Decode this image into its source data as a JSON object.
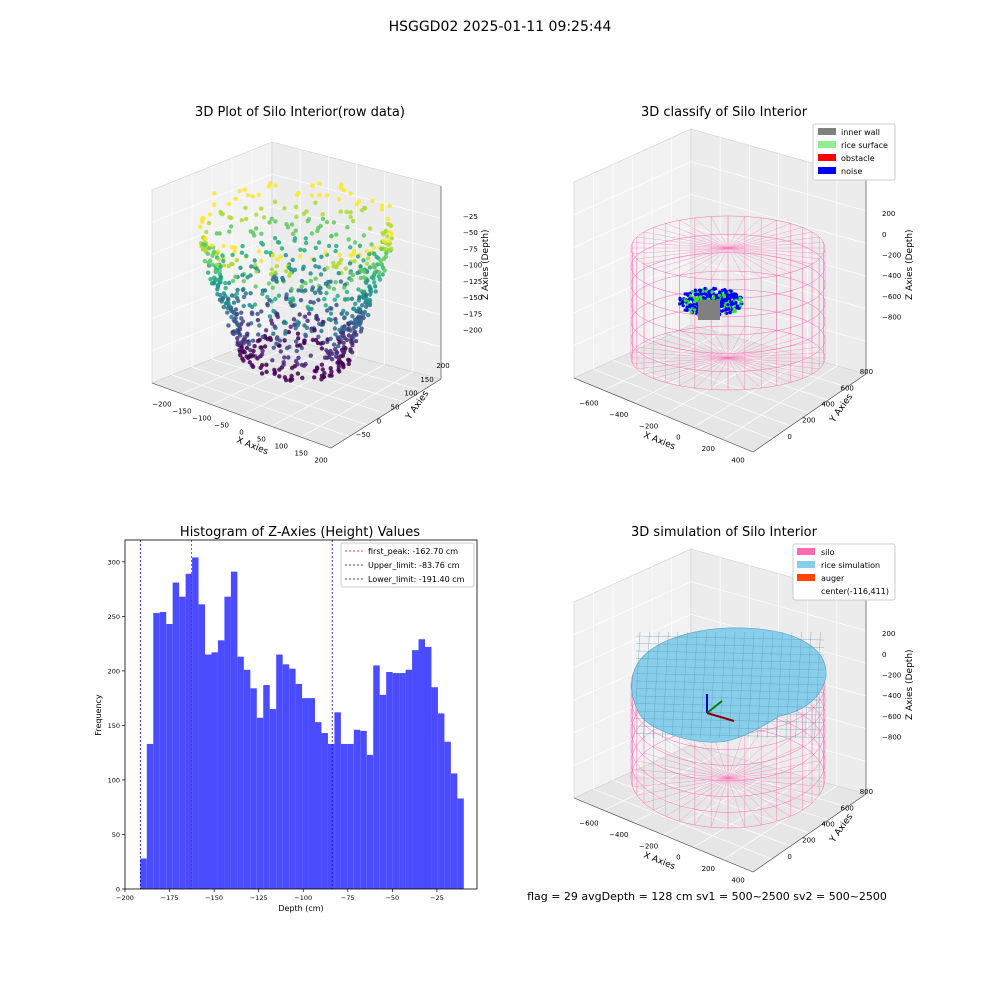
{
  "figure_title": "HSGGD02 2025-01-11 09:25:44",
  "footer_text": "flag = 29  avgDepth = 128 cm  sv1 = 500~2500  sv2 = 500~2500",
  "colors": {
    "hist_bar": "#4b4bff",
    "peak_line": "#ff0000",
    "limit_line": "#0000cc",
    "inner_wall": "#808080",
    "rice_surface": "#90ee90",
    "obstacle": "#ff0000",
    "noise": "#0000ff",
    "silo": "#ff69b4",
    "rice_simulation": "#87ceeb",
    "auger": "#ff4500"
  },
  "chart_data": [
    {
      "type": "scatter",
      "title": "3D Plot of Silo Interior(row data)",
      "xlabel": "X Axies",
      "ylabel": "Y Axies",
      "zlabel": "Z Axies (Depth)",
      "xticks": [
        "−200",
        "−150",
        "−100",
        "−50",
        "0",
        "50",
        "100",
        "150",
        "200"
      ],
      "yticks": [
        "−50",
        "0",
        "50",
        "100",
        "150",
        "200"
      ],
      "zticks": [
        "−25",
        "−50",
        "−75",
        "−100",
        "−125",
        "−150",
        "−175",
        "−200"
      ],
      "colormap": "viridis"
    },
    {
      "type": "scatter",
      "title": "3D classify of Silo Interior",
      "xlabel": "X Axies",
      "ylabel": "Y Axies",
      "zlabel": "Z Axies (Depth)",
      "xticks": [
        "−600",
        "−400",
        "−200",
        "0",
        "200",
        "400"
      ],
      "yticks": [
        "0",
        "200",
        "400",
        "600",
        "800"
      ],
      "zticks": [
        "200",
        "0",
        "−200",
        "−400",
        "−600",
        "−800"
      ],
      "legend": [
        "inner wall",
        "rice surface",
        "obstacle",
        "noise"
      ],
      "legend_position": "top-right"
    },
    {
      "type": "bar",
      "title": "Histogram of Z-Axies (Height) Values",
      "xlabel": "Depth (cm)",
      "ylabel": "Frequency",
      "xlim": [
        -200,
        -2.5
      ],
      "ylim": [
        0,
        320
      ],
      "xticks": [
        "−200",
        "−175",
        "−150",
        "−125",
        "−100",
        "−75",
        "−50",
        "−25"
      ],
      "yticks": [
        "0",
        "50",
        "100",
        "150",
        "200",
        "250",
        "300"
      ],
      "bin_start": -191.4,
      "bin_width": 3.63,
      "values": [
        28,
        133,
        253,
        254,
        243,
        281,
        268,
        289,
        304,
        261,
        215,
        217,
        228,
        268,
        291,
        213,
        201,
        184,
        157,
        187,
        165,
        215,
        206,
        202,
        188,
        175,
        175,
        153,
        143,
        133,
        162,
        133,
        133,
        146,
        145,
        123,
        205,
        178,
        199,
        198,
        198,
        201,
        219,
        229,
        222,
        185,
        161,
        135,
        106,
        83
      ],
      "lines": [
        {
          "label": "first_peak: -162.70 cm",
          "x": -162.7,
          "color": "#ff0000"
        },
        {
          "label": "Upper_limit: -83.76 cm",
          "x": -83.76,
          "color": "#0000cc"
        },
        {
          "label": "Lower_limit: -191.40 cm",
          "x": -191.4,
          "color": "#0000cc"
        }
      ],
      "legend_position": "top-right"
    },
    {
      "type": "surface",
      "title": "3D simulation of Silo Interior",
      "xlabel": "X Axies",
      "ylabel": "Y Axies",
      "zlabel": "Z Axies (Depth)",
      "xticks": [
        "−600",
        "−400",
        "−200",
        "0",
        "200",
        "400"
      ],
      "yticks": [
        "0",
        "200",
        "400",
        "600",
        "800"
      ],
      "zticks": [
        "200",
        "0",
        "−200",
        "−400",
        "−600",
        "−800"
      ],
      "legend": [
        "silo",
        "rice simulation",
        "auger",
        "center(-116,411)"
      ],
      "legend_position": "top-right"
    }
  ]
}
